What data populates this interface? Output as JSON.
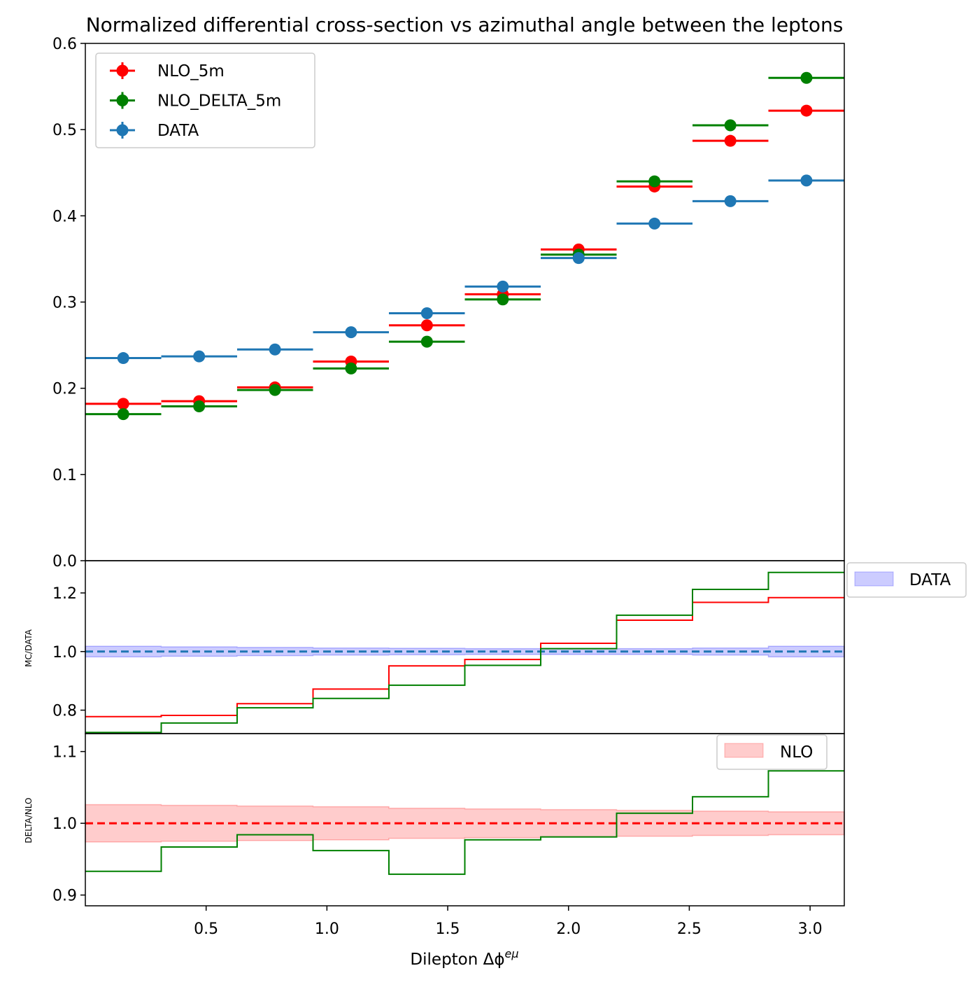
{
  "chart_data": [
    {
      "type": "scatter",
      "title": "Normalized differential cross-section vs azimuthal angle between the leptons",
      "xlabel": "Dilepton Δϕ",
      "xlabel_sup": "eμ",
      "ylabel": "",
      "xlim": [
        0,
        3.1416
      ],
      "ylim": [
        0,
        0.6
      ],
      "yticks": [
        "0.0",
        "0.1",
        "0.2",
        "0.3",
        "0.4",
        "0.5",
        "0.6"
      ],
      "bin_edges": [
        0,
        0.3142,
        0.6283,
        0.9425,
        1.2566,
        1.5708,
        1.885,
        2.1991,
        2.5133,
        2.8274,
        3.1416
      ],
      "x": [
        0.157,
        0.471,
        0.785,
        1.1,
        1.414,
        1.728,
        2.042,
        2.356,
        2.67,
        2.985
      ],
      "series": [
        {
          "name": "NLO_5m",
          "color": "#ff0000",
          "values": [
            0.182,
            0.185,
            0.201,
            0.231,
            0.273,
            0.309,
            0.361,
            0.434,
            0.487,
            0.522
          ]
        },
        {
          "name": "NLO_DELTA_5m",
          "color": "#008000",
          "values": [
            0.17,
            0.179,
            0.198,
            0.223,
            0.254,
            0.303,
            0.355,
            0.44,
            0.505,
            0.56
          ]
        },
        {
          "name": "DATA",
          "color": "#1f77b4",
          "values": [
            0.235,
            0.237,
            0.245,
            0.265,
            0.287,
            0.318,
            0.351,
            0.391,
            0.417,
            0.441
          ]
        }
      ],
      "legend": {
        "placement": "upper-left",
        "entries": [
          "NLO_5m",
          "NLO_DELTA_5m",
          "DATA"
        ]
      }
    },
    {
      "type": "line",
      "ylabel": "MC/DATA",
      "ylim": [
        0.72,
        1.31
      ],
      "yticks": [
        "0.8",
        "1.0",
        "1.2"
      ],
      "series": [
        {
          "name": "NLO",
          "color": "#ff0000",
          "values": [
            0.778,
            0.782,
            0.822,
            0.872,
            0.951,
            0.973,
            1.028,
            1.107,
            1.168,
            1.184
          ]
        },
        {
          "name": "DELTA",
          "color": "#008000",
          "values": [
            0.724,
            0.756,
            0.808,
            0.84,
            0.885,
            0.953,
            1.01,
            1.124,
            1.212,
            1.27
          ]
        }
      ],
      "reference": {
        "value": 1.0,
        "color": "#1f77b4"
      },
      "band": {
        "label": "DATA",
        "color": "#0000ff",
        "half_width": [
          0.018,
          0.016,
          0.014,
          0.012,
          0.011,
          0.01,
          0.01,
          0.01,
          0.012,
          0.018
        ]
      },
      "legend": {
        "placement": "outside-right",
        "entries": [
          "DATA"
        ]
      }
    },
    {
      "type": "line",
      "ylabel": "DELTA/NLO",
      "ylim": [
        0.885,
        1.125
      ],
      "yticks": [
        "0.9",
        "1.0",
        "1.1"
      ],
      "xticks": [
        "0.5",
        "1.0",
        "1.5",
        "2.0",
        "2.5",
        "3.0"
      ],
      "series": [
        {
          "name": "DELTA",
          "color": "#008000",
          "values": [
            0.933,
            0.967,
            0.984,
            0.962,
            0.929,
            0.977,
            0.981,
            1.014,
            1.037,
            1.073
          ]
        }
      ],
      "reference": {
        "value": 1.0,
        "color": "#ff0000"
      },
      "band": {
        "label": "NLO",
        "color": "#ff0000",
        "half_width": [
          0.026,
          0.025,
          0.024,
          0.023,
          0.021,
          0.02,
          0.019,
          0.018,
          0.017,
          0.016
        ]
      },
      "legend": {
        "placement": "upper-right",
        "entries": [
          "NLO"
        ]
      }
    }
  ]
}
